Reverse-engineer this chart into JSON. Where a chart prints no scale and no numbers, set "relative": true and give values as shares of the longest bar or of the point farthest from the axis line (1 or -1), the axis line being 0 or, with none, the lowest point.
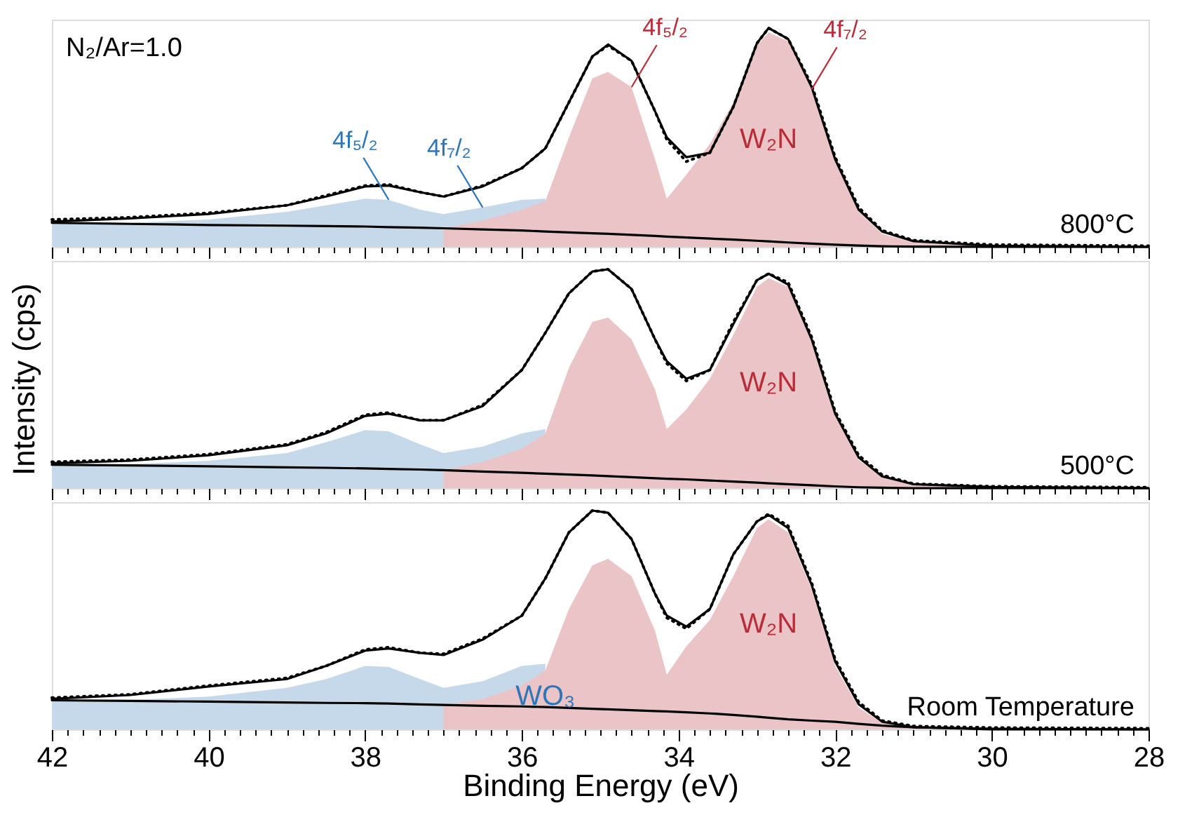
{
  "chart_data": [
    {
      "type": "area",
      "relative": true,
      "tick_labels": false,
      "xlim": [
        42,
        28
      ],
      "xticks": [
        42,
        {
          "value": 41.8,
          "label": null
        },
        {
          "value": 41.6,
          "label": null
        },
        {
          "value": 41.4,
          "label": null
        },
        {
          "value": 41.2,
          "label": null
        },
        {
          "value": 41,
          "label": null
        },
        {
          "value": 40.8,
          "label": null
        },
        {
          "value": 40.6,
          "label": null
        },
        {
          "value": 40.4,
          "label": null
        },
        {
          "value": 40.2,
          "label": null
        },
        40,
        {
          "value": 39.8,
          "label": null
        },
        {
          "value": 39.6,
          "label": null
        },
        {
          "value": 39.4,
          "label": null
        },
        {
          "value": 39.2,
          "label": null
        },
        {
          "value": 39,
          "label": null
        },
        {
          "value": 38.8,
          "label": null
        },
        {
          "value": 38.6,
          "label": null
        },
        {
          "value": 38.4,
          "label": null
        },
        {
          "value": 38.2,
          "label": null
        },
        38,
        {
          "value": 37.8,
          "label": null
        },
        {
          "value": 37.6,
          "label": null
        },
        {
          "value": 37.4,
          "label": null
        },
        {
          "value": 37.2,
          "label": null
        },
        {
          "value": 37,
          "label": null
        },
        {
          "value": 36.8,
          "label": null
        },
        {
          "value": 36.6,
          "label": null
        },
        {
          "value": 36.4,
          "label": null
        },
        {
          "value": 36.2,
          "label": null
        },
        36,
        {
          "value": 35.8,
          "label": null
        },
        {
          "value": 35.6,
          "label": null
        },
        {
          "value": 35.4,
          "label": null
        },
        {
          "value": 35.2,
          "label": null
        },
        {
          "value": 35,
          "label": null
        },
        {
          "value": 34.8,
          "label": null
        },
        {
          "value": 34.6,
          "label": null
        },
        {
          "value": 34.4,
          "label": null
        },
        {
          "value": 34.2,
          "label": null
        },
        34,
        {
          "value": 33.8,
          "label": null
        },
        {
          "value": 33.6,
          "label": null
        },
        {
          "value": 33.4,
          "label": null
        },
        {
          "value": 33.2,
          "label": null
        },
        {
          "value": 33,
          "label": null
        },
        {
          "value": 32.8,
          "label": null
        },
        {
          "value": 32.6,
          "label": null
        },
        {
          "value": 32.4,
          "label": null
        },
        {
          "value": 32.2,
          "label": null
        },
        32,
        {
          "value": 31.8,
          "label": null
        },
        {
          "value": 31.6,
          "label": null
        },
        {
          "value": 31.4,
          "label": null
        },
        {
          "value": 31.2,
          "label": null
        },
        {
          "value": 31,
          "label": null
        },
        {
          "value": 30.8,
          "label": null
        },
        {
          "value": 30.6,
          "label": null
        },
        {
          "value": 30.4,
          "label": null
        },
        {
          "value": 30.2,
          "label": null
        },
        30,
        {
          "value": 29.8,
          "label": null
        },
        {
          "value": 29.6,
          "label": null
        },
        {
          "value": 29.4,
          "label": null
        },
        {
          "value": 29.2,
          "label": null
        },
        {
          "value": 29,
          "label": null
        },
        {
          "value": 28.8,
          "label": null
        },
        {
          "value": 28.6,
          "label": null
        },
        {
          "value": 28.4,
          "label": null
        },
        {
          "value": 28.2,
          "label": null
        },
        28
      ],
      "x": [
        42,
        41,
        40,
        39,
        38.5,
        38,
        37.7,
        37.3,
        37,
        36.5,
        36,
        35.7,
        35.4,
        35.1,
        34.9,
        34.6,
        34.3,
        34.15,
        33.9,
        33.6,
        33.3,
        33.0,
        32.85,
        32.6,
        32.3,
        32.0,
        31.7,
        31.4,
        31.0,
        30,
        28
      ],
      "series": [
        {
          "color": "#c6d9ea",
          "values": [
            0.11,
            0.11,
            0.125,
            0.16,
            0.19,
            0.22,
            0.215,
            0.17,
            0.15,
            0.18,
            0.215,
            0.22,
            null,
            null,
            null,
            null,
            null,
            null,
            null,
            null,
            null,
            null,
            null,
            null,
            null,
            null,
            null,
            null,
            null,
            null,
            null
          ]
        },
        {
          "name": "W₂N",
          "color": "#ebc4c7",
          "values": [
            null,
            null,
            null,
            null,
            null,
            null,
            null,
            null,
            0.085,
            0.12,
            0.17,
            0.21,
            0.5,
            0.77,
            0.8,
            0.73,
            0.4,
            0.22,
            0.33,
            0.47,
            0.66,
            0.92,
            0.98,
            0.94,
            0.72,
            0.39,
            0.16,
            0.06,
            0.02,
            0,
            null
          ]
        },
        {
          "type": "line",
          "color": "#000000",
          "line_style": "solid",
          "values": [
            0.11,
            0.105,
            0.1,
            0.097,
            0.095,
            0.093,
            0.09,
            0.088,
            0.085,
            0.08,
            0.075,
            0.07,
            0.066,
            0.062,
            0.06,
            0.055,
            0.05,
            0.047,
            0.043,
            0.038,
            0.033,
            0.028,
            0.025,
            0.02,
            0.015,
            0.01,
            0.006,
            0.003,
            0.001,
            0,
            0
          ]
        },
        {
          "type": "line",
          "color": "#000000",
          "line_style": "solid",
          "values": [
            0.116,
            0.13,
            0.15,
            0.19,
            0.23,
            0.276,
            0.28,
            0.25,
            0.23,
            0.276,
            0.36,
            0.45,
            0.66,
            0.87,
            0.925,
            0.85,
            0.62,
            0.5,
            0.41,
            0.43,
            0.64,
            0.93,
            1.0,
            0.95,
            0.73,
            0.4,
            0.17,
            0.07,
            0.026,
            0.005,
            0
          ]
        },
        {
          "type": "line",
          "color": "#000000",
          "line_style": "dotted",
          "values": [
            0.125,
            0.135,
            0.155,
            0.19,
            0.235,
            0.28,
            0.285,
            0.25,
            0.23,
            0.28,
            0.36,
            0.45,
            0.66,
            0.87,
            0.92,
            0.85,
            0.62,
            0.49,
            0.39,
            0.43,
            0.64,
            0.93,
            1.0,
            0.95,
            0.74,
            0.41,
            0.18,
            0.075,
            0.03,
            0.01,
            0.005
          ]
        }
      ],
      "annotations": [
        "N₂/Ar=1.0",
        {
          "text": "4f₅/₂",
          "x": 37.7,
          "y": 0.215
        },
        {
          "text": "4f₇/₂",
          "x": 36.5,
          "y": 0.18
        },
        {
          "text": "4f₅/₂",
          "x": 34.6,
          "y": 0.73
        },
        {
          "text": "4f₇/₂",
          "x": 32.3,
          "y": 0.72
        },
        "800°C"
      ]
    },
    {
      "type": "area",
      "relative": true,
      "tick_labels": false,
      "ylabel": "Intensity (cps)",
      "xlim": [
        42,
        28
      ],
      "xticks": [
        42,
        {
          "value": 41.8,
          "label": null
        },
        {
          "value": 41.6,
          "label": null
        },
        {
          "value": 41.4,
          "label": null
        },
        {
          "value": 41.2,
          "label": null
        },
        {
          "value": 41,
          "label": null
        },
        {
          "value": 40.8,
          "label": null
        },
        {
          "value": 40.6,
          "label": null
        },
        {
          "value": 40.4,
          "label": null
        },
        {
          "value": 40.2,
          "label": null
        },
        40,
        {
          "value": 39.8,
          "label": null
        },
        {
          "value": 39.6,
          "label": null
        },
        {
          "value": 39.4,
          "label": null
        },
        {
          "value": 39.2,
          "label": null
        },
        {
          "value": 39,
          "label": null
        },
        {
          "value": 38.8,
          "label": null
        },
        {
          "value": 38.6,
          "label": null
        },
        {
          "value": 38.4,
          "label": null
        },
        {
          "value": 38.2,
          "label": null
        },
        38,
        {
          "value": 37.8,
          "label": null
        },
        {
          "value": 37.6,
          "label": null
        },
        {
          "value": 37.4,
          "label": null
        },
        {
          "value": 37.2,
          "label": null
        },
        {
          "value": 37,
          "label": null
        },
        {
          "value": 36.8,
          "label": null
        },
        {
          "value": 36.6,
          "label": null
        },
        {
          "value": 36.4,
          "label": null
        },
        {
          "value": 36.2,
          "label": null
        },
        36,
        {
          "value": 35.8,
          "label": null
        },
        {
          "value": 35.6,
          "label": null
        },
        {
          "value": 35.4,
          "label": null
        },
        {
          "value": 35.2,
          "label": null
        },
        {
          "value": 35,
          "label": null
        },
        {
          "value": 34.8,
          "label": null
        },
        {
          "value": 34.6,
          "label": null
        },
        {
          "value": 34.4,
          "label": null
        },
        {
          "value": 34.2,
          "label": null
        },
        34,
        {
          "value": 33.8,
          "label": null
        },
        {
          "value": 33.6,
          "label": null
        },
        {
          "value": 33.4,
          "label": null
        },
        {
          "value": 33.2,
          "label": null
        },
        {
          "value": 33,
          "label": null
        },
        {
          "value": 32.8,
          "label": null
        },
        {
          "value": 32.6,
          "label": null
        },
        {
          "value": 32.4,
          "label": null
        },
        {
          "value": 32.2,
          "label": null
        },
        32,
        {
          "value": 31.8,
          "label": null
        },
        {
          "value": 31.6,
          "label": null
        },
        {
          "value": 31.4,
          "label": null
        },
        {
          "value": 31.2,
          "label": null
        },
        {
          "value": 31,
          "label": null
        },
        {
          "value": 30.8,
          "label": null
        },
        {
          "value": 30.6,
          "label": null
        },
        {
          "value": 30.4,
          "label": null
        },
        {
          "value": 30.2,
          "label": null
        },
        30,
        {
          "value": 29.8,
          "label": null
        },
        {
          "value": 29.6,
          "label": null
        },
        {
          "value": 29.4,
          "label": null
        },
        {
          "value": 29.2,
          "label": null
        },
        {
          "value": 29,
          "label": null
        },
        {
          "value": 28.8,
          "label": null
        },
        {
          "value": 28.6,
          "label": null
        },
        {
          "value": 28.4,
          "label": null
        },
        {
          "value": 28.2,
          "label": null
        },
        28
      ],
      "x": [
        42,
        41,
        40,
        39,
        38.5,
        38,
        37.7,
        37.3,
        37,
        36.5,
        36,
        35.7,
        35.4,
        35.1,
        34.9,
        34.6,
        34.3,
        34.15,
        33.9,
        33.6,
        33.3,
        33.0,
        32.85,
        32.6,
        32.3,
        32.0,
        31.7,
        31.4,
        31.0,
        30,
        28
      ],
      "series": [
        {
          "color": "#c6d9ea",
          "values": [
            0.107,
            0.11,
            0.125,
            0.16,
            0.21,
            0.265,
            0.26,
            0.2,
            0.16,
            0.19,
            0.25,
            0.27,
            null,
            null,
            null,
            null,
            null,
            null,
            null,
            null,
            null,
            null,
            null,
            null,
            null,
            null,
            null,
            null,
            null,
            null,
            null
          ]
        },
        {
          "name": "W₂N",
          "color": "#ebc4c7",
          "values": [
            null,
            null,
            null,
            null,
            null,
            null,
            null,
            null,
            0.082,
            0.12,
            0.18,
            0.25,
            0.55,
            0.76,
            0.78,
            0.68,
            0.45,
            0.27,
            0.36,
            0.5,
            0.7,
            0.92,
            0.96,
            0.92,
            0.67,
            0.33,
            0.13,
            0.05,
            0.017,
            0.004,
            null
          ]
        },
        {
          "type": "line",
          "color": "#000000",
          "line_style": "solid",
          "values": [
            0.107,
            0.104,
            0.1,
            0.095,
            0.093,
            0.09,
            0.088,
            0.085,
            0.082,
            0.076,
            0.07,
            0.066,
            0.062,
            0.058,
            0.055,
            0.05,
            0.045,
            0.043,
            0.04,
            0.035,
            0.03,
            0.025,
            0.022,
            0.018,
            0.013,
            0.008,
            0.004,
            0.002,
            0,
            0,
            0
          ]
        },
        {
          "type": "line",
          "color": "#000000",
          "line_style": "solid",
          "values": [
            0.114,
            0.125,
            0.15,
            0.196,
            0.25,
            0.33,
            0.34,
            0.31,
            0.31,
            0.375,
            0.54,
            0.71,
            0.89,
            0.99,
            1.0,
            0.91,
            0.68,
            0.58,
            0.5,
            0.54,
            0.75,
            0.95,
            0.98,
            0.93,
            0.68,
            0.34,
            0.14,
            0.054,
            0.018,
            0.005,
            0
          ]
        },
        {
          "type": "line",
          "color": "#000000",
          "line_style": "dotted",
          "values": [
            0.12,
            0.13,
            0.155,
            0.2,
            0.255,
            0.335,
            0.345,
            0.31,
            0.31,
            0.38,
            0.54,
            0.71,
            0.89,
            0.99,
            1.0,
            0.91,
            0.68,
            0.57,
            0.49,
            0.54,
            0.76,
            0.95,
            0.98,
            0.94,
            0.69,
            0.35,
            0.15,
            0.06,
            0.02,
            0.008,
            0.004
          ]
        }
      ],
      "annotations": [
        "500°C"
      ]
    },
    {
      "type": "area",
      "relative": true,
      "tick_labels": "x",
      "xlabel": "Binding Energy (eV)",
      "xlim": [
        42,
        28
      ],
      "xticks": [
        42,
        {
          "value": 41.8,
          "label": null
        },
        {
          "value": 41.6,
          "label": null
        },
        {
          "value": 41.4,
          "label": null
        },
        {
          "value": 41.2,
          "label": null
        },
        {
          "value": 41,
          "label": null
        },
        {
          "value": 40.8,
          "label": null
        },
        {
          "value": 40.6,
          "label": null
        },
        {
          "value": 40.4,
          "label": null
        },
        {
          "value": 40.2,
          "label": null
        },
        40,
        {
          "value": 39.8,
          "label": null
        },
        {
          "value": 39.6,
          "label": null
        },
        {
          "value": 39.4,
          "label": null
        },
        {
          "value": 39.2,
          "label": null
        },
        {
          "value": 39,
          "label": null
        },
        {
          "value": 38.8,
          "label": null
        },
        {
          "value": 38.6,
          "label": null
        },
        {
          "value": 38.4,
          "label": null
        },
        {
          "value": 38.2,
          "label": null
        },
        38,
        {
          "value": 37.8,
          "label": null
        },
        {
          "value": 37.6,
          "label": null
        },
        {
          "value": 37.4,
          "label": null
        },
        {
          "value": 37.2,
          "label": null
        },
        {
          "value": 37,
          "label": null
        },
        {
          "value": 36.8,
          "label": null
        },
        {
          "value": 36.6,
          "label": null
        },
        {
          "value": 36.4,
          "label": null
        },
        {
          "value": 36.2,
          "label": null
        },
        36,
        {
          "value": 35.8,
          "label": null
        },
        {
          "value": 35.6,
          "label": null
        },
        {
          "value": 35.4,
          "label": null
        },
        {
          "value": 35.2,
          "label": null
        },
        {
          "value": 35,
          "label": null
        },
        {
          "value": 34.8,
          "label": null
        },
        {
          "value": 34.6,
          "label": null
        },
        {
          "value": 34.4,
          "label": null
        },
        {
          "value": 34.2,
          "label": null
        },
        34,
        {
          "value": 33.8,
          "label": null
        },
        {
          "value": 33.6,
          "label": null
        },
        {
          "value": 33.4,
          "label": null
        },
        {
          "value": 33.2,
          "label": null
        },
        {
          "value": 33,
          "label": null
        },
        {
          "value": 32.8,
          "label": null
        },
        {
          "value": 32.6,
          "label": null
        },
        {
          "value": 32.4,
          "label": null
        },
        {
          "value": 32.2,
          "label": null
        },
        32,
        {
          "value": 31.8,
          "label": null
        },
        {
          "value": 31.6,
          "label": null
        },
        {
          "value": 31.4,
          "label": null
        },
        {
          "value": 31.2,
          "label": null
        },
        {
          "value": 31,
          "label": null
        },
        {
          "value": 30.8,
          "label": null
        },
        {
          "value": 30.6,
          "label": null
        },
        {
          "value": 30.4,
          "label": null
        },
        {
          "value": 30.2,
          "label": null
        },
        30,
        {
          "value": 29.8,
          "label": null
        },
        {
          "value": 29.6,
          "label": null
        },
        {
          "value": 29.4,
          "label": null
        },
        {
          "value": 29.2,
          "label": null
        },
        {
          "value": 29,
          "label": null
        },
        {
          "value": 28.8,
          "label": null
        },
        {
          "value": 28.6,
          "label": null
        },
        {
          "value": 28.4,
          "label": null
        },
        {
          "value": 28.2,
          "label": null
        },
        28
      ],
      "x": [
        42,
        41,
        40,
        39,
        38.5,
        38,
        37.7,
        37.3,
        37,
        36.5,
        36,
        35.7,
        35.4,
        35.1,
        34.9,
        34.6,
        34.3,
        34.15,
        33.9,
        33.6,
        33.3,
        33.0,
        32.85,
        32.6,
        32.3,
        32.0,
        31.7,
        31.4,
        31.0,
        30,
        28
      ],
      "series": [
        {
          "name": "WO₃",
          "color": "#c6d9ea",
          "values": [
            0.133,
            0.135,
            0.15,
            0.19,
            0.23,
            0.29,
            0.285,
            0.23,
            0.19,
            0.22,
            0.29,
            0.3,
            null,
            null,
            null,
            null,
            null,
            null,
            null,
            null,
            null,
            null,
            null,
            null,
            null,
            null,
            null,
            null,
            null,
            null,
            null
          ]
        },
        {
          "name": "W₂N",
          "color": "#ebc4c7",
          "values": [
            null,
            null,
            null,
            null,
            null,
            null,
            null,
            null,
            0.112,
            0.14,
            0.2,
            0.27,
            0.55,
            0.75,
            0.78,
            0.7,
            0.45,
            0.25,
            0.38,
            0.5,
            0.7,
            0.92,
            0.96,
            0.9,
            0.64,
            0.29,
            0.1,
            0.03,
            0.01,
            0,
            null
          ]
        },
        {
          "type": "line",
          "color": "#000000",
          "line_style": "solid",
          "values": [
            0.133,
            0.13,
            0.127,
            0.123,
            0.121,
            0.12,
            0.118,
            0.114,
            0.112,
            0.108,
            0.105,
            0.102,
            0.098,
            0.094,
            0.092,
            0.088,
            0.084,
            0.082,
            0.078,
            0.073,
            0.066,
            0.058,
            0.053,
            0.046,
            0.04,
            0.035,
            0.025,
            0.017,
            0.01,
            0,
            0
          ]
        },
        {
          "type": "line",
          "color": "#000000",
          "line_style": "solid",
          "values": [
            0.14,
            0.157,
            0.196,
            0.23,
            0.29,
            0.36,
            0.37,
            0.35,
            0.34,
            0.41,
            0.52,
            0.69,
            0.9,
            1.0,
            0.99,
            0.87,
            0.62,
            0.52,
            0.47,
            0.55,
            0.8,
            0.95,
            0.98,
            0.92,
            0.66,
            0.31,
            0.115,
            0.035,
            0.01,
            0.003,
            0
          ]
        },
        {
          "type": "line",
          "color": "#000000",
          "line_style": "dotted",
          "values": [
            0.145,
            0.16,
            0.2,
            0.235,
            0.29,
            0.365,
            0.375,
            0.35,
            0.345,
            0.415,
            0.52,
            0.69,
            0.9,
            1.0,
            0.99,
            0.87,
            0.62,
            0.51,
            0.46,
            0.55,
            0.8,
            0.95,
            0.985,
            0.93,
            0.67,
            0.32,
            0.125,
            0.04,
            0.015,
            0.008,
            0.005
          ]
        }
      ],
      "annotations": [
        "Room Temperature"
      ]
    }
  ]
}
